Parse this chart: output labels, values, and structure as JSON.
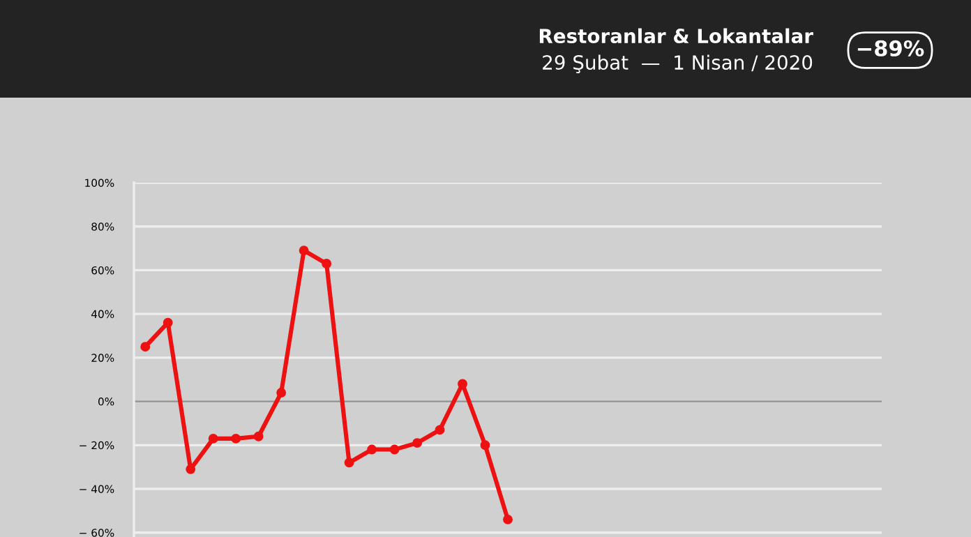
{
  "chart_data": {
    "type": "line",
    "title": "Restoranlar & Lokantalar",
    "subtitle": "29 Şubat  —  1 Nisan / 2020",
    "annotations": [
      "−89%"
    ],
    "categories": [
      null,
      null,
      null,
      null,
      null,
      null,
      null,
      null,
      null,
      null,
      null,
      null,
      null,
      null,
      null,
      null,
      null,
      null,
      null,
      null,
      null,
      null,
      null,
      null,
      null,
      null,
      null,
      null,
      null,
      null,
      null,
      null,
      null
    ],
    "series": [
      {
        "color": "#ee1111",
        "values": [
          25,
          36,
          -31,
          -17,
          -17,
          -16,
          4,
          69,
          63,
          -28,
          -22,
          -22,
          -19,
          -13,
          8,
          -20,
          -54,
          null,
          null,
          null,
          null,
          null,
          null,
          null,
          null,
          null,
          null,
          null,
          null,
          null,
          null,
          null,
          null
        ]
      }
    ],
    "ylim": [
      -62,
      100
    ],
    "yticks": [
      {
        "value": 100,
        "label": "100%"
      },
      {
        "value": 80,
        "label": "80%"
      },
      {
        "value": 60,
        "label": "60%"
      },
      {
        "value": 40,
        "label": "40%"
      },
      {
        "value": 20,
        "label": "20%"
      },
      {
        "value": 0,
        "label": "0%"
      },
      {
        "value": -20,
        "label": "− 20%"
      },
      {
        "value": -40,
        "label": "− 40%"
      },
      {
        "value": -60,
        "label": "− 60%"
      }
    ],
    "ref_lines": [
      {
        "axis": "y",
        "value": 0,
        "color": "#999999"
      }
    ],
    "grid": "y",
    "marker": "circle",
    "line_style": "solid",
    "legend": false,
    "tick_labels": "y"
  }
}
